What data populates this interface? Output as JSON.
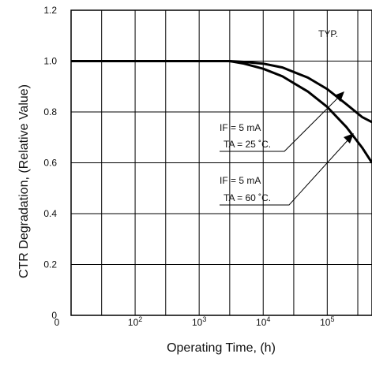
{
  "chart_data": {
    "type": "line",
    "title": "",
    "xlabel": "Operating Time,  (h)",
    "ylabel": "CTR Degradation, (Relative Value)",
    "x_scale": "log",
    "xlim": [
      10,
      500000
    ],
    "ylim": [
      0,
      1.2
    ],
    "grid": true,
    "legend": "none",
    "x_tick_labels": [
      {
        "base": "0",
        "exp": ""
      },
      {
        "base": "10",
        "exp": "2"
      },
      {
        "base": "10",
        "exp": "3"
      },
      {
        "base": "10",
        "exp": "4"
      },
      {
        "base": "10",
        "exp": "5"
      }
    ],
    "y_ticks": [
      "0",
      "0.2",
      "0.4",
      "0.6",
      "0.8",
      "1.0",
      "1.2"
    ],
    "series": [
      {
        "x": [
          10,
          100,
          1000,
          3000,
          5000,
          10000,
          20000,
          50000,
          100000,
          200000,
          350000,
          500000
        ],
        "y": [
          1.0,
          1.0,
          1.0,
          1.0,
          0.997,
          0.99,
          0.975,
          0.935,
          0.89,
          0.83,
          0.78,
          0.76
        ]
      },
      {
        "x": [
          10,
          100,
          1000,
          3000,
          5000,
          10000,
          20000,
          50000,
          100000,
          200000,
          350000,
          500000
        ],
        "y": [
          1.0,
          1.0,
          1.0,
          1.0,
          0.99,
          0.97,
          0.94,
          0.88,
          0.82,
          0.74,
          0.66,
          0.6
        ]
      }
    ],
    "annotations": {
      "typ": "TYP.",
      "note1": {
        "if": "IF =  5 mA",
        "ta": "TA = 25 ˚C."
      },
      "note2": {
        "if": "IF =  5 mA",
        "ta": "TA = 60 ˚C."
      }
    }
  }
}
